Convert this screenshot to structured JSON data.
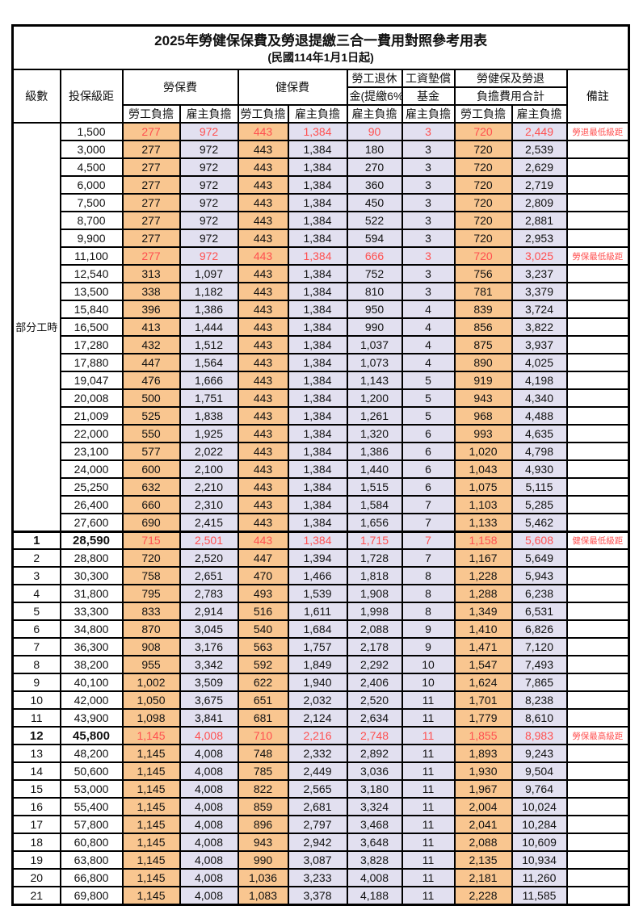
{
  "title": "2025年勞健保保費及勞退提繳三合一費用對照參考用表",
  "subtitle": "(民國114年1月1日起)",
  "colors": {
    "employee_bg": "#F9C690",
    "employer_bg": "#E2E0F0",
    "highlight_text": "#FF5050",
    "border": "#000000"
  },
  "header": {
    "level": "級數",
    "bracket": "投保級距",
    "labor_ins": "勞保費",
    "health_ins": "健保費",
    "pension_line1": "勞工退休",
    "pension_line2": "金(提繳6%)",
    "wage_fund_line1": "工資墊償",
    "wage_fund_line2": "基金",
    "total_line1": "勞健保及勞退",
    "total_line2": "負擔費用合計",
    "remark": "備註",
    "employee": "勞工負擔",
    "employer": "雇主負擔"
  },
  "part_time_label": "部分工時",
  "rows": [
    {
      "level": "",
      "bracket": "1,500",
      "values": [
        "277",
        "972",
        "443",
        "1,384",
        "90",
        "3",
        "720",
        "2,449"
      ],
      "remark": "勞退最低級距",
      "red": true,
      "bold": false
    },
    {
      "level": "",
      "bracket": "3,000",
      "values": [
        "277",
        "972",
        "443",
        "1,384",
        "180",
        "3",
        "720",
        "2,539"
      ],
      "remark": "",
      "red": false,
      "bold": false
    },
    {
      "level": "",
      "bracket": "4,500",
      "values": [
        "277",
        "972",
        "443",
        "1,384",
        "270",
        "3",
        "720",
        "2,629"
      ],
      "remark": "",
      "red": false,
      "bold": false
    },
    {
      "level": "",
      "bracket": "6,000",
      "values": [
        "277",
        "972",
        "443",
        "1,384",
        "360",
        "3",
        "720",
        "2,719"
      ],
      "remark": "",
      "red": false,
      "bold": false
    },
    {
      "level": "",
      "bracket": "7,500",
      "values": [
        "277",
        "972",
        "443",
        "1,384",
        "450",
        "3",
        "720",
        "2,809"
      ],
      "remark": "",
      "red": false,
      "bold": false
    },
    {
      "level": "",
      "bracket": "8,700",
      "values": [
        "277",
        "972",
        "443",
        "1,384",
        "522",
        "3",
        "720",
        "2,881"
      ],
      "remark": "",
      "red": false,
      "bold": false
    },
    {
      "level": "",
      "bracket": "9,900",
      "values": [
        "277",
        "972",
        "443",
        "1,384",
        "594",
        "3",
        "720",
        "2,953"
      ],
      "remark": "",
      "red": false,
      "bold": false
    },
    {
      "level": "",
      "bracket": "11,100",
      "values": [
        "277",
        "972",
        "443",
        "1,384",
        "666",
        "3",
        "720",
        "3,025"
      ],
      "remark": "勞保最低級距",
      "red": true,
      "bold": false
    },
    {
      "level": "",
      "bracket": "12,540",
      "values": [
        "313",
        "1,097",
        "443",
        "1,384",
        "752",
        "3",
        "756",
        "3,237"
      ],
      "remark": "",
      "red": false,
      "bold": false
    },
    {
      "level": "",
      "bracket": "13,500",
      "values": [
        "338",
        "1,182",
        "443",
        "1,384",
        "810",
        "3",
        "781",
        "3,379"
      ],
      "remark": "",
      "red": false,
      "bold": false
    },
    {
      "level": "",
      "bracket": "15,840",
      "values": [
        "396",
        "1,386",
        "443",
        "1,384",
        "950",
        "4",
        "839",
        "3,724"
      ],
      "remark": "",
      "red": false,
      "bold": false
    },
    {
      "level": "",
      "bracket": "16,500",
      "values": [
        "413",
        "1,444",
        "443",
        "1,384",
        "990",
        "4",
        "856",
        "3,822"
      ],
      "remark": "",
      "red": false,
      "bold": false
    },
    {
      "level": "",
      "bracket": "17,280",
      "values": [
        "432",
        "1,512",
        "443",
        "1,384",
        "1,037",
        "4",
        "875",
        "3,937"
      ],
      "remark": "",
      "red": false,
      "bold": false
    },
    {
      "level": "",
      "bracket": "17,880",
      "values": [
        "447",
        "1,564",
        "443",
        "1,384",
        "1,073",
        "4",
        "890",
        "4,025"
      ],
      "remark": "",
      "red": false,
      "bold": false
    },
    {
      "level": "",
      "bracket": "19,047",
      "values": [
        "476",
        "1,666",
        "443",
        "1,384",
        "1,143",
        "5",
        "919",
        "4,198"
      ],
      "remark": "",
      "red": false,
      "bold": false
    },
    {
      "level": "",
      "bracket": "20,008",
      "values": [
        "500",
        "1,751",
        "443",
        "1,384",
        "1,200",
        "5",
        "943",
        "4,340"
      ],
      "remark": "",
      "red": false,
      "bold": false
    },
    {
      "level": "",
      "bracket": "21,009",
      "values": [
        "525",
        "1,838",
        "443",
        "1,384",
        "1,261",
        "5",
        "968",
        "4,488"
      ],
      "remark": "",
      "red": false,
      "bold": false
    },
    {
      "level": "",
      "bracket": "22,000",
      "values": [
        "550",
        "1,925",
        "443",
        "1,384",
        "1,320",
        "6",
        "993",
        "4,635"
      ],
      "remark": "",
      "red": false,
      "bold": false
    },
    {
      "level": "",
      "bracket": "23,100",
      "values": [
        "577",
        "2,022",
        "443",
        "1,384",
        "1,386",
        "6",
        "1,020",
        "4,798"
      ],
      "remark": "",
      "red": false,
      "bold": false
    },
    {
      "level": "",
      "bracket": "24,000",
      "values": [
        "600",
        "2,100",
        "443",
        "1,384",
        "1,440",
        "6",
        "1,043",
        "4,930"
      ],
      "remark": "",
      "red": false,
      "bold": false
    },
    {
      "level": "",
      "bracket": "25,250",
      "values": [
        "632",
        "2,210",
        "443",
        "1,384",
        "1,515",
        "6",
        "1,075",
        "5,115"
      ],
      "remark": "",
      "red": false,
      "bold": false
    },
    {
      "level": "",
      "bracket": "26,400",
      "values": [
        "660",
        "2,310",
        "443",
        "1,384",
        "1,584",
        "7",
        "1,103",
        "5,285"
      ],
      "remark": "",
      "red": false,
      "bold": false
    },
    {
      "level": "",
      "bracket": "27,600",
      "values": [
        "690",
        "2,415",
        "443",
        "1,384",
        "1,656",
        "7",
        "1,133",
        "5,462"
      ],
      "remark": "",
      "red": false,
      "bold": false
    },
    {
      "level": "1",
      "bracket": "28,590",
      "values": [
        "715",
        "2,501",
        "443",
        "1,384",
        "1,715",
        "7",
        "1,158",
        "5,608"
      ],
      "remark": "健保最低級距",
      "red": true,
      "bold": true
    },
    {
      "level": "2",
      "bracket": "28,800",
      "values": [
        "720",
        "2,520",
        "447",
        "1,394",
        "1,728",
        "7",
        "1,167",
        "5,649"
      ],
      "remark": "",
      "red": false,
      "bold": false
    },
    {
      "level": "3",
      "bracket": "30,300",
      "values": [
        "758",
        "2,651",
        "470",
        "1,466",
        "1,818",
        "8",
        "1,228",
        "5,943"
      ],
      "remark": "",
      "red": false,
      "bold": false
    },
    {
      "level": "4",
      "bracket": "31,800",
      "values": [
        "795",
        "2,783",
        "493",
        "1,539",
        "1,908",
        "8",
        "1,288",
        "6,238"
      ],
      "remark": "",
      "red": false,
      "bold": false
    },
    {
      "level": "5",
      "bracket": "33,300",
      "values": [
        "833",
        "2,914",
        "516",
        "1,611",
        "1,998",
        "8",
        "1,349",
        "6,531"
      ],
      "remark": "",
      "red": false,
      "bold": false
    },
    {
      "level": "6",
      "bracket": "34,800",
      "values": [
        "870",
        "3,045",
        "540",
        "1,684",
        "2,088",
        "9",
        "1,410",
        "6,826"
      ],
      "remark": "",
      "red": false,
      "bold": false
    },
    {
      "level": "7",
      "bracket": "36,300",
      "values": [
        "908",
        "3,176",
        "563",
        "1,757",
        "2,178",
        "9",
        "1,471",
        "7,120"
      ],
      "remark": "",
      "red": false,
      "bold": false
    },
    {
      "level": "8",
      "bracket": "38,200",
      "values": [
        "955",
        "3,342",
        "592",
        "1,849",
        "2,292",
        "10",
        "1,547",
        "7,493"
      ],
      "remark": "",
      "red": false,
      "bold": false
    },
    {
      "level": "9",
      "bracket": "40,100",
      "values": [
        "1,002",
        "3,509",
        "622",
        "1,940",
        "2,406",
        "10",
        "1,624",
        "7,865"
      ],
      "remark": "",
      "red": false,
      "bold": false
    },
    {
      "level": "10",
      "bracket": "42,000",
      "values": [
        "1,050",
        "3,675",
        "651",
        "2,032",
        "2,520",
        "11",
        "1,701",
        "8,238"
      ],
      "remark": "",
      "red": false,
      "bold": false
    },
    {
      "level": "11",
      "bracket": "43,900",
      "values": [
        "1,098",
        "3,841",
        "681",
        "2,124",
        "2,634",
        "11",
        "1,779",
        "8,610"
      ],
      "remark": "",
      "red": false,
      "bold": false
    },
    {
      "level": "12",
      "bracket": "45,800",
      "values": [
        "1,145",
        "4,008",
        "710",
        "2,216",
        "2,748",
        "11",
        "1,855",
        "8,983"
      ],
      "remark": "勞保最高級距",
      "red": true,
      "bold": true
    },
    {
      "level": "13",
      "bracket": "48,200",
      "values": [
        "1,145",
        "4,008",
        "748",
        "2,332",
        "2,892",
        "11",
        "1,893",
        "9,243"
      ],
      "remark": "",
      "red": false,
      "bold": false
    },
    {
      "level": "14",
      "bracket": "50,600",
      "values": [
        "1,145",
        "4,008",
        "785",
        "2,449",
        "3,036",
        "11",
        "1,930",
        "9,504"
      ],
      "remark": "",
      "red": false,
      "bold": false
    },
    {
      "level": "15",
      "bracket": "53,000",
      "values": [
        "1,145",
        "4,008",
        "822",
        "2,565",
        "3,180",
        "11",
        "1,967",
        "9,764"
      ],
      "remark": "",
      "red": false,
      "bold": false
    },
    {
      "level": "16",
      "bracket": "55,400",
      "values": [
        "1,145",
        "4,008",
        "859",
        "2,681",
        "3,324",
        "11",
        "2,004",
        "10,024"
      ],
      "remark": "",
      "red": false,
      "bold": false
    },
    {
      "level": "17",
      "bracket": "57,800",
      "values": [
        "1,145",
        "4,008",
        "896",
        "2,797",
        "3,468",
        "11",
        "2,041",
        "10,284"
      ],
      "remark": "",
      "red": false,
      "bold": false
    },
    {
      "level": "18",
      "bracket": "60,800",
      "values": [
        "1,145",
        "4,008",
        "943",
        "2,942",
        "3,648",
        "11",
        "2,088",
        "10,609"
      ],
      "remark": "",
      "red": false,
      "bold": false
    },
    {
      "level": "19",
      "bracket": "63,800",
      "values": [
        "1,145",
        "4,008",
        "990",
        "3,087",
        "3,828",
        "11",
        "2,135",
        "10,934"
      ],
      "remark": "",
      "red": false,
      "bold": false
    },
    {
      "level": "20",
      "bracket": "66,800",
      "values": [
        "1,145",
        "4,008",
        "1,036",
        "3,233",
        "4,008",
        "11",
        "2,181",
        "11,260"
      ],
      "remark": "",
      "red": false,
      "bold": false
    },
    {
      "level": "21",
      "bracket": "69,800",
      "values": [
        "1,145",
        "4,008",
        "1,083",
        "3,378",
        "4,188",
        "11",
        "2,228",
        "11,585"
      ],
      "remark": "",
      "red": false,
      "bold": false
    }
  ]
}
